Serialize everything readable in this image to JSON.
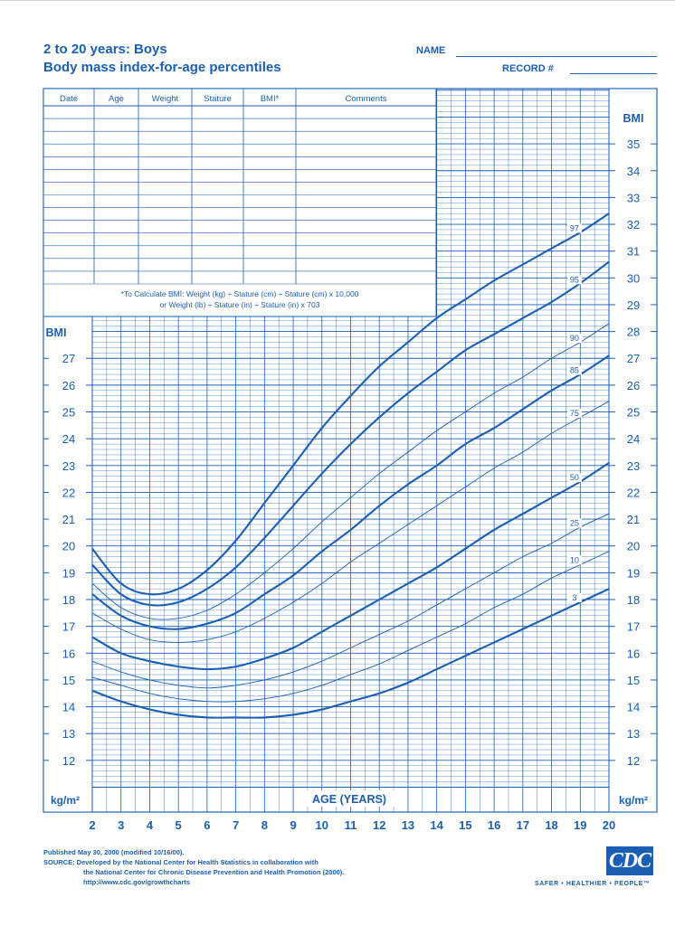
{
  "header": {
    "title_line1": "2 to 20 years: Boys",
    "title_line2": "Body mass index-for-age percentiles",
    "name_label": "NAME",
    "record_label": "RECORD #"
  },
  "table": {
    "columns": [
      "Date",
      "Age",
      "Weight",
      "Stature",
      "BMI*",
      "Comments"
    ],
    "formula_line1": "*To Calculate BMI: Weight (kg) ÷ Stature (cm) ÷ Stature (cm) x 10,000",
    "formula_line2": "or Weight (lb) ÷ Stature (in) ÷ Stature (in) x 703"
  },
  "footer": {
    "line1": "Published May 30, 2000 (modified 10/16/00).",
    "line2": "SOURCE: Developed by the National Center for Health Statistics in collaboration with",
    "line3": "the National Center for Chronic Disease Prevention and Health Promotion (2000).",
    "line4": "http://www.cdc.gov/growthcharts",
    "logo_text": "CDC",
    "tagline": "SAFER • HEALTHIER • PEOPLE™"
  },
  "colors": {
    "ink": "#1a5fb4"
  },
  "chart_data": {
    "type": "line",
    "xlabel": "AGE (YEARS)",
    "ylabel_left": "BMI",
    "ylabel_right": "BMI",
    "unit_label": "kg/m²",
    "xlim": [
      2,
      20
    ],
    "ylim_left": [
      11,
      28
    ],
    "ylim_right": [
      11,
      36
    ],
    "x_ticks": [
      2,
      3,
      4,
      5,
      6,
      7,
      8,
      9,
      10,
      11,
      12,
      13,
      14,
      15,
      16,
      17,
      18,
      19,
      20
    ],
    "y_ticks_left": [
      12,
      13,
      14,
      15,
      16,
      17,
      18,
      19,
      20,
      21,
      22,
      23,
      24,
      25,
      26,
      27
    ],
    "y_ticks_right": [
      12,
      13,
      14,
      15,
      16,
      17,
      18,
      19,
      20,
      21,
      22,
      23,
      24,
      25,
      26,
      27,
      28,
      29,
      30,
      31,
      32,
      33,
      34,
      35
    ],
    "grid": true,
    "x": [
      2,
      3,
      4,
      5,
      6,
      7,
      8,
      9,
      10,
      11,
      12,
      13,
      14,
      15,
      16,
      17,
      18,
      19,
      20
    ],
    "series": [
      {
        "name": "97",
        "bold": true,
        "values": [
          19.9,
          18.6,
          18.2,
          18.4,
          19.1,
          20.2,
          21.6,
          23.0,
          24.4,
          25.6,
          26.7,
          27.6,
          28.5,
          29.2,
          29.9,
          30.5,
          31.1,
          31.7,
          32.4
        ]
      },
      {
        "name": "95",
        "bold": true,
        "values": [
          19.3,
          18.2,
          17.8,
          17.9,
          18.4,
          19.2,
          20.3,
          21.5,
          22.7,
          23.8,
          24.8,
          25.7,
          26.5,
          27.3,
          27.9,
          28.5,
          29.1,
          29.8,
          30.6
        ]
      },
      {
        "name": "90",
        "bold": false,
        "values": [
          18.6,
          17.7,
          17.3,
          17.3,
          17.6,
          18.2,
          19.0,
          19.9,
          20.9,
          21.8,
          22.7,
          23.5,
          24.3,
          25.0,
          25.7,
          26.3,
          27.0,
          27.6,
          28.3
        ]
      },
      {
        "name": "85",
        "bold": true,
        "values": [
          18.2,
          17.4,
          17.0,
          16.9,
          17.1,
          17.5,
          18.2,
          18.9,
          19.8,
          20.6,
          21.5,
          22.3,
          23.0,
          23.8,
          24.4,
          25.1,
          25.8,
          26.4,
          27.1
        ]
      },
      {
        "name": "75",
        "bold": false,
        "values": [
          17.5,
          16.9,
          16.5,
          16.4,
          16.5,
          16.8,
          17.3,
          17.9,
          18.6,
          19.4,
          20.1,
          20.8,
          21.5,
          22.2,
          22.9,
          23.5,
          24.2,
          24.8,
          25.4
        ]
      },
      {
        "name": "50",
        "bold": true,
        "values": [
          16.6,
          16.0,
          15.7,
          15.5,
          15.4,
          15.5,
          15.8,
          16.2,
          16.8,
          17.4,
          18.0,
          18.6,
          19.2,
          19.9,
          20.6,
          21.2,
          21.8,
          22.4,
          23.1
        ]
      },
      {
        "name": "25",
        "bold": false,
        "values": [
          15.7,
          15.3,
          15.0,
          14.8,
          14.7,
          14.8,
          15.0,
          15.3,
          15.7,
          16.2,
          16.7,
          17.2,
          17.8,
          18.4,
          19.0,
          19.6,
          20.1,
          20.7,
          21.2
        ]
      },
      {
        "name": "10",
        "bold": false,
        "values": [
          15.1,
          14.8,
          14.5,
          14.3,
          14.2,
          14.2,
          14.3,
          14.5,
          14.8,
          15.2,
          15.6,
          16.1,
          16.6,
          17.1,
          17.7,
          18.2,
          18.8,
          19.3,
          19.8
        ]
      },
      {
        "name": "3",
        "bold": true,
        "values": [
          14.6,
          14.2,
          13.9,
          13.7,
          13.6,
          13.6,
          13.6,
          13.7,
          13.9,
          14.2,
          14.5,
          14.9,
          15.4,
          15.9,
          16.4,
          16.9,
          17.4,
          17.9,
          18.4
        ]
      }
    ]
  }
}
